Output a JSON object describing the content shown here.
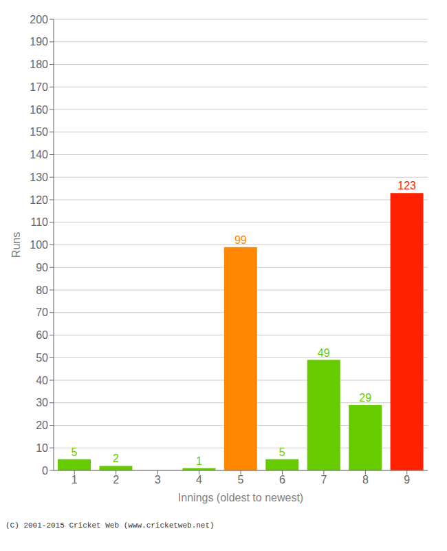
{
  "chart_data": {
    "type": "bar",
    "xlabel": "Innings (oldest to newest)",
    "ylabel": "Runs",
    "footer": "(C) 2001-2015 Cricket Web (www.cricketweb.net)",
    "categories": [
      "1",
      "2",
      "3",
      "4",
      "5",
      "6",
      "7",
      "8",
      "9"
    ],
    "values": [
      5,
      2,
      0,
      1,
      99,
      5,
      49,
      29,
      123
    ],
    "colors": [
      "#66cc00",
      "#66cc00",
      "#66cc00",
      "#66cc00",
      "#ff8800",
      "#66cc00",
      "#66cc00",
      "#66cc00",
      "#ff2200"
    ],
    "ylim": [
      0,
      200
    ],
    "yticks": [
      0,
      10,
      20,
      30,
      40,
      50,
      60,
      70,
      80,
      90,
      100,
      110,
      120,
      130,
      140,
      150,
      160,
      170,
      180,
      190,
      200
    ],
    "grid": true,
    "data_labels": true
  }
}
